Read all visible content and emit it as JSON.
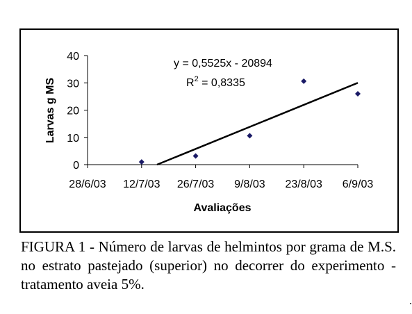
{
  "chart_data": {
    "type": "scatter",
    "xlabel": "Avaliações",
    "ylabel": "Larvas g MS",
    "x_ticks": [
      "28/6/03",
      "12/7/03",
      "26/7/03",
      "9/8/03",
      "23/8/03",
      "6/9/03"
    ],
    "ylim": [
      0,
      40
    ],
    "y_ticks": [
      0,
      10,
      20,
      30,
      40
    ],
    "series": [
      {
        "points": [
          {
            "x": "12/7/03",
            "y": 1
          },
          {
            "x": "26/7/03",
            "y": 3.2
          },
          {
            "x": "9/8/03",
            "y": 10.6
          },
          {
            "x": "23/8/03",
            "y": 30.6
          },
          {
            "x": "6/9/03",
            "y": 26
          }
        ],
        "marker_color": "#1a1a66"
      }
    ],
    "trendline": {
      "type": "linear",
      "start": {
        "x": "16/7/03",
        "y": 0
      },
      "end": {
        "x": "6/9/03",
        "y": 30
      },
      "color": "#000000",
      "equation": "y = 0,5525x - 20894",
      "r2_label": "R",
      "r2_sup": "2",
      "r2_value": " = 0,8335"
    }
  },
  "caption": "FIGURA 1 - Número de larvas de helmintos por grama de M.S. no estrato pastejado (superior) no decorrer do experimento - tratamento aveia 5%."
}
